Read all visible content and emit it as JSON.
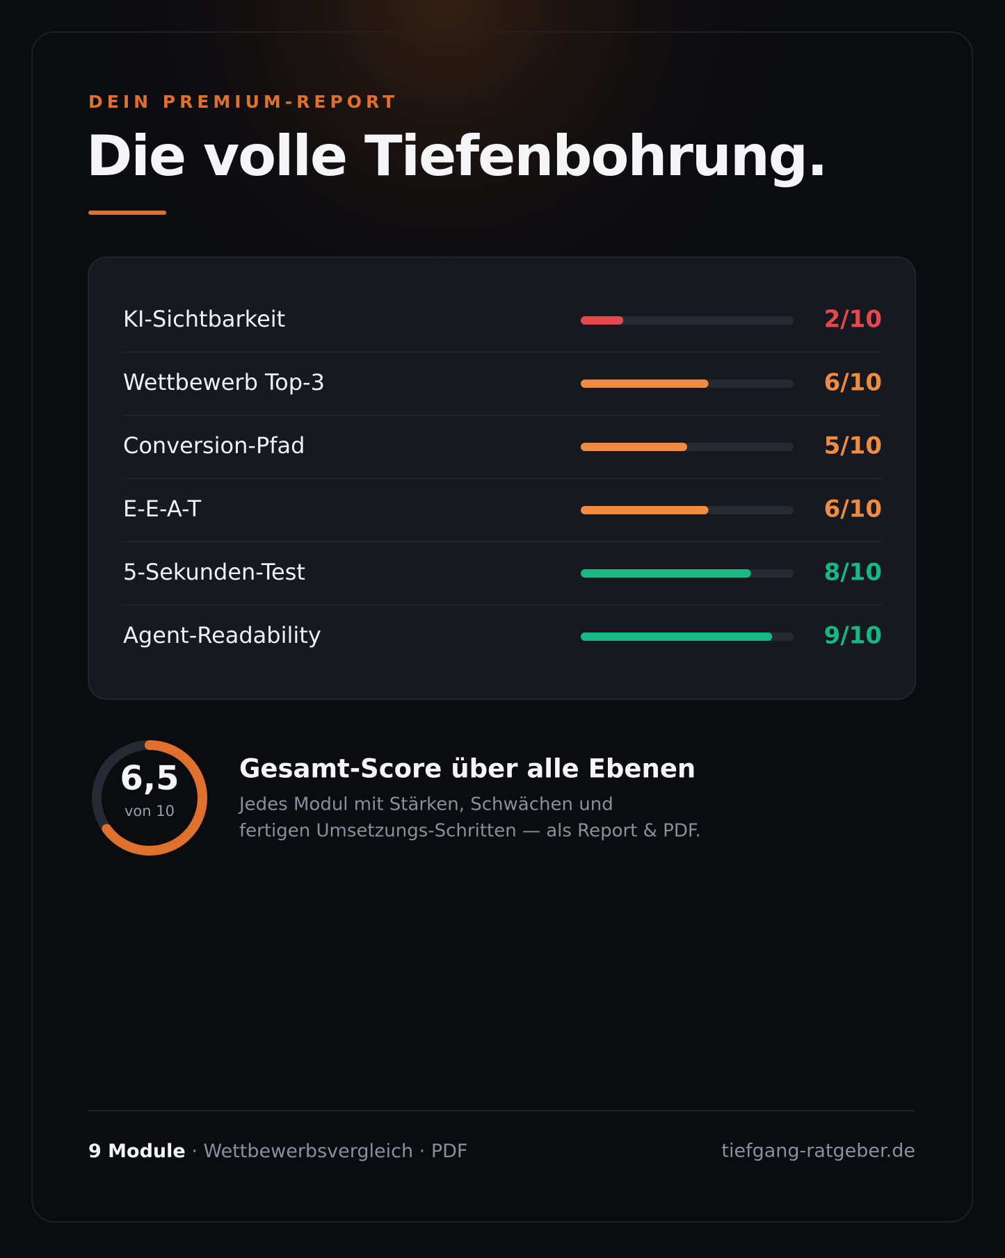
{
  "eyebrow": "DEIN PREMIUM-REPORT",
  "title": "Die volle Tiefenbohrung.",
  "scores": {
    "xlim": [
      0,
      10
    ],
    "track_color": "#262a33",
    "rows": [
      {
        "label": "KI-Sichtbarkeit",
        "value": 2,
        "value_label": "2/10",
        "color": "#e5484d"
      },
      {
        "label": "Wettbewerb Top-3",
        "value": 6,
        "value_label": "6/10",
        "color": "#f08c3f"
      },
      {
        "label": "Conversion-Pfad",
        "value": 5,
        "value_label": "5/10",
        "color": "#f08c3f"
      },
      {
        "label": "E-E-A-T",
        "value": 6,
        "value_label": "6/10",
        "color": "#f08c3f"
      },
      {
        "label": "5-Sekunden-Test",
        "value": 8,
        "value_label": "8/10",
        "color": "#16b981"
      },
      {
        "label": "Agent-Readability",
        "value": 9,
        "value_label": "9/10",
        "color": "#16b981"
      }
    ]
  },
  "total": {
    "value": 6.5,
    "value_label": "6,5",
    "caption": "von 10",
    "range": [
      0,
      10
    ],
    "color": "#e0712c",
    "track_color": "#262a33",
    "heading": "Gesamt-Score über alle Ebenen",
    "description": [
      "Jedes Modul mit Stärken, Schwächen und",
      "fertigen Umsetzungs-Schritten — als Report & PDF."
    ]
  },
  "footer": {
    "highlight": "9 Module",
    "rest": "· Wettbewerbsvergleich · PDF",
    "site": "tiefgang-ratgeber.de"
  }
}
